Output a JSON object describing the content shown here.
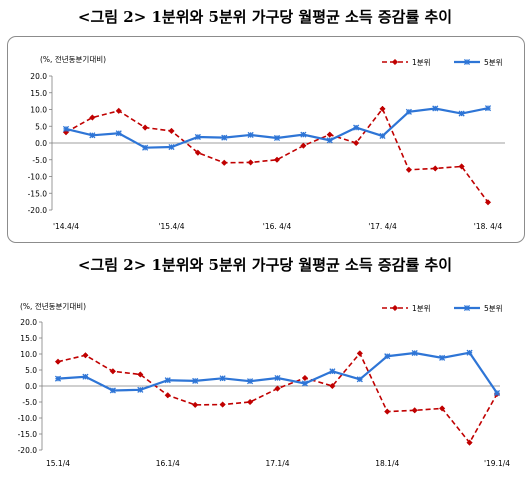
{
  "chart_data": [
    {
      "type": "line",
      "title": "<그림 2> 1분위와 5분위 가구당 월평균 소득 증감률 추이",
      "unit_label": "(%, 전년동분기대비)",
      "x_tick_labels": [
        "'14.4/4",
        "'15.4/4",
        "'16. 4/4",
        "'17. 4/4",
        "'18. 4/4"
      ],
      "x": [
        "'14.4/4",
        "'15.1/4",
        "'15.2/4",
        "'15.3/4",
        "'15.4/4",
        "'16.1/4",
        "'16.2/4",
        "'16.3/4",
        "'16.4/4",
        "'17.1/4",
        "'17.2/4",
        "'17.3/4",
        "'17.4/4",
        "'18.1/4",
        "'18.2/4",
        "'18.3/4",
        "'18.4/4"
      ],
      "series": [
        {
          "name": "1분위",
          "color": "#c00000",
          "style": "dashed",
          "values": [
            3.2,
            7.6,
            9.6,
            4.6,
            3.6,
            -2.9,
            -5.9,
            -5.8,
            -5.0,
            -0.8,
            2.5,
            0.0,
            10.2,
            -8.0,
            -7.6,
            -7.0,
            -17.7
          ]
        },
        {
          "name": "5분위",
          "color": "#2e75d6",
          "style": "solid",
          "values": [
            4.2,
            2.3,
            2.9,
            -1.4,
            -1.2,
            1.8,
            1.6,
            2.4,
            1.5,
            2.5,
            0.8,
            4.6,
            2.1,
            9.3,
            10.3,
            8.8,
            10.4
          ]
        }
      ],
      "ylim": [
        -20,
        20
      ],
      "yticks": [
        "20.0",
        "15.0",
        "10.0",
        "5.0",
        "0.0",
        "-5.0",
        "-10.0",
        "-15.0",
        "-20.0"
      ],
      "legend_position": "top-right",
      "grid": false
    },
    {
      "type": "line",
      "title": "<그림 2> 1분위와 5분위 가구당 월평균 소득 증감률 추이",
      "unit_label": "(%, 전년동분기대비)",
      "x_tick_labels": [
        "15.1/4",
        "16.1/4",
        "17.1/4",
        "18.1/4",
        "'19.1/4"
      ],
      "x": [
        "15.1/4",
        "15.2/4",
        "15.3/4",
        "15.4/4",
        "16.1/4",
        "16.2/4",
        "16.3/4",
        "16.4/4",
        "17.1/4",
        "17.2/4",
        "17.3/4",
        "17.4/4",
        "18.1/4",
        "18.2/4",
        "18.3/4",
        "18.4/4",
        "19.1/4"
      ],
      "series": [
        {
          "name": "1분위",
          "color": "#c00000",
          "style": "dashed",
          "values": [
            7.6,
            9.6,
            4.6,
            3.6,
            -2.9,
            -5.9,
            -5.8,
            -5.0,
            -0.8,
            2.5,
            0.0,
            10.2,
            -8.0,
            -7.6,
            -7.0,
            -17.7,
            -2.5
          ]
        },
        {
          "name": "5분위",
          "color": "#2e75d6",
          "style": "solid",
          "values": [
            2.3,
            2.9,
            -1.4,
            -1.2,
            1.8,
            1.6,
            2.4,
            1.5,
            2.5,
            0.8,
            4.6,
            2.1,
            9.3,
            10.3,
            8.8,
            10.4,
            -2.2
          ]
        }
      ],
      "ylim": [
        -20,
        20
      ],
      "yticks": [
        "20.0",
        "15.0",
        "10.0",
        "5.0",
        "0.0",
        "-5.0",
        "-10.0",
        "-15.0",
        "-20.0"
      ],
      "legend_position": "top-right",
      "grid": false
    }
  ]
}
